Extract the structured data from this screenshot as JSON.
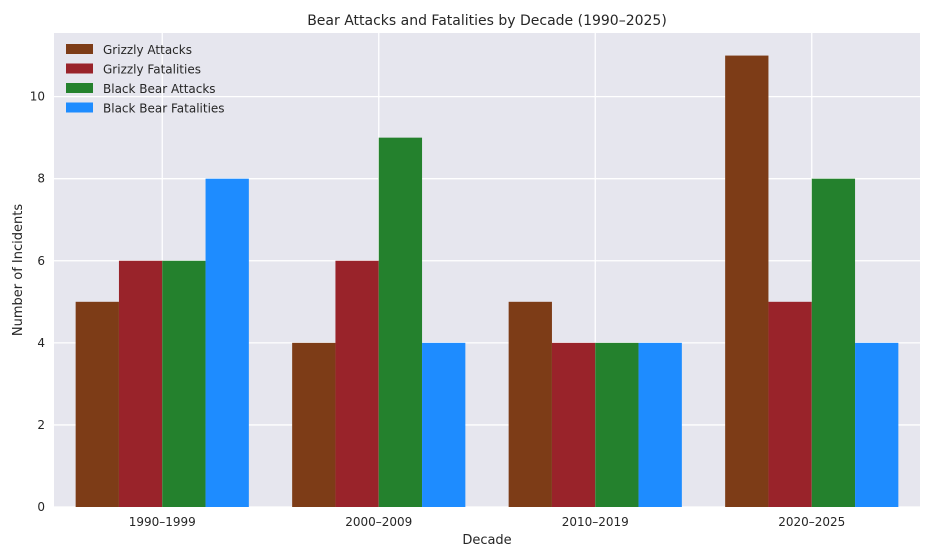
{
  "chart_data": {
    "type": "bar",
    "title": "Bear Attacks and Fatalities by Decade (1990–2025)",
    "xlabel": "Decade",
    "ylabel": "Number of Incidents",
    "categories": [
      "1990–1999",
      "2000–2009",
      "2010–2019",
      "2020–2025"
    ],
    "series": [
      {
        "name": "Grizzly Attacks",
        "color": "#7d3c17",
        "values": [
          5,
          4,
          5,
          11
        ]
      },
      {
        "name": "Grizzly Fatalities",
        "color": "#99232a",
        "values": [
          6,
          6,
          4,
          5
        ]
      },
      {
        "name": "Black Bear Attacks",
        "color": "#24812d",
        "values": [
          6,
          9,
          4,
          8
        ]
      },
      {
        "name": "Black Bear Fatalities",
        "color": "#1e8cff",
        "values": [
          8,
          4,
          4,
          4
        ]
      }
    ],
    "ylim": [
      0,
      11.55
    ],
    "yticks": [
      0,
      2,
      4,
      6,
      8,
      10
    ],
    "grid": true,
    "legend_position": "top-left",
    "background": "#e6e6ee"
  }
}
